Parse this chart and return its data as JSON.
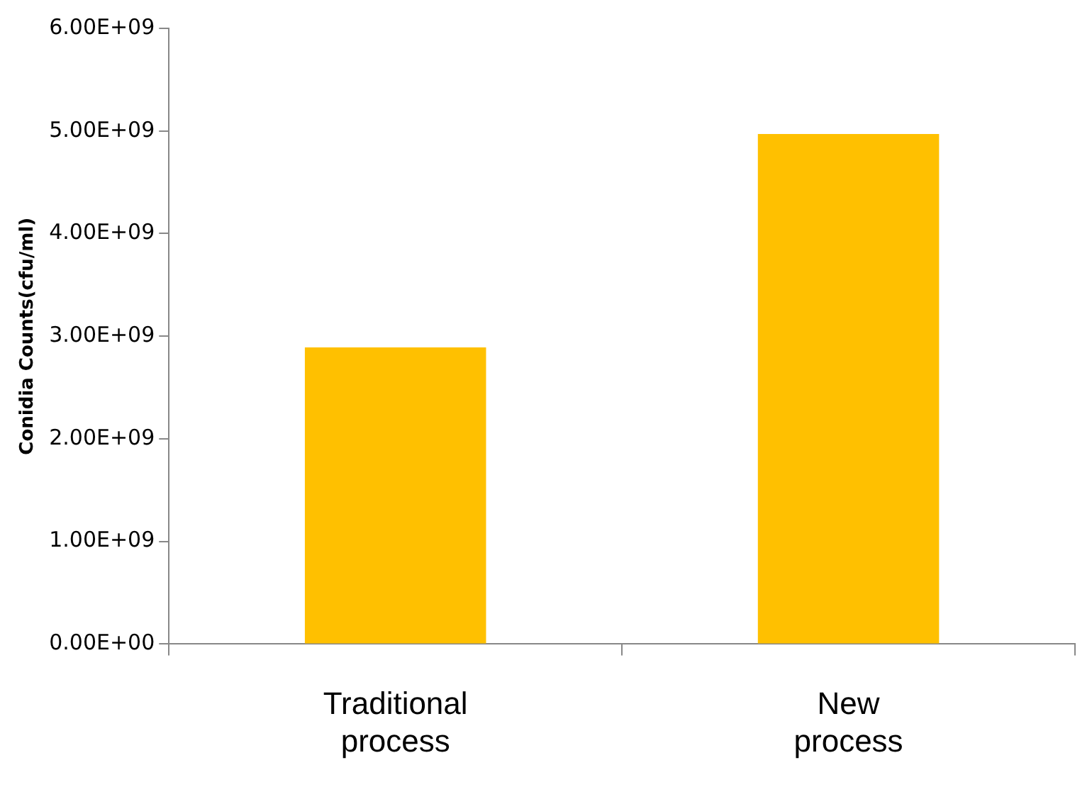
{
  "chart_data": {
    "type": "bar",
    "ylabel": "Conidia Counts(cfu/ml)",
    "categories": [
      "Traditional process",
      "New process"
    ],
    "values": [
      2890000000,
      4970000000
    ],
    "color": "#ffc000",
    "ylim": [
      0,
      6000000000
    ],
    "yticks": [
      {
        "value": 0,
        "label": "0.00E+00"
      },
      {
        "value": 1000000000,
        "label": "1.00E+09"
      },
      {
        "value": 2000000000,
        "label": "2.00E+09"
      },
      {
        "value": 3000000000,
        "label": "3.00E+09"
      },
      {
        "value": 4000000000,
        "label": "4.00E+09"
      },
      {
        "value": 5000000000,
        "label": "5.00E+09"
      },
      {
        "value": 6000000000,
        "label": "6.00E+09"
      }
    ],
    "grid": false,
    "legend": false
  }
}
